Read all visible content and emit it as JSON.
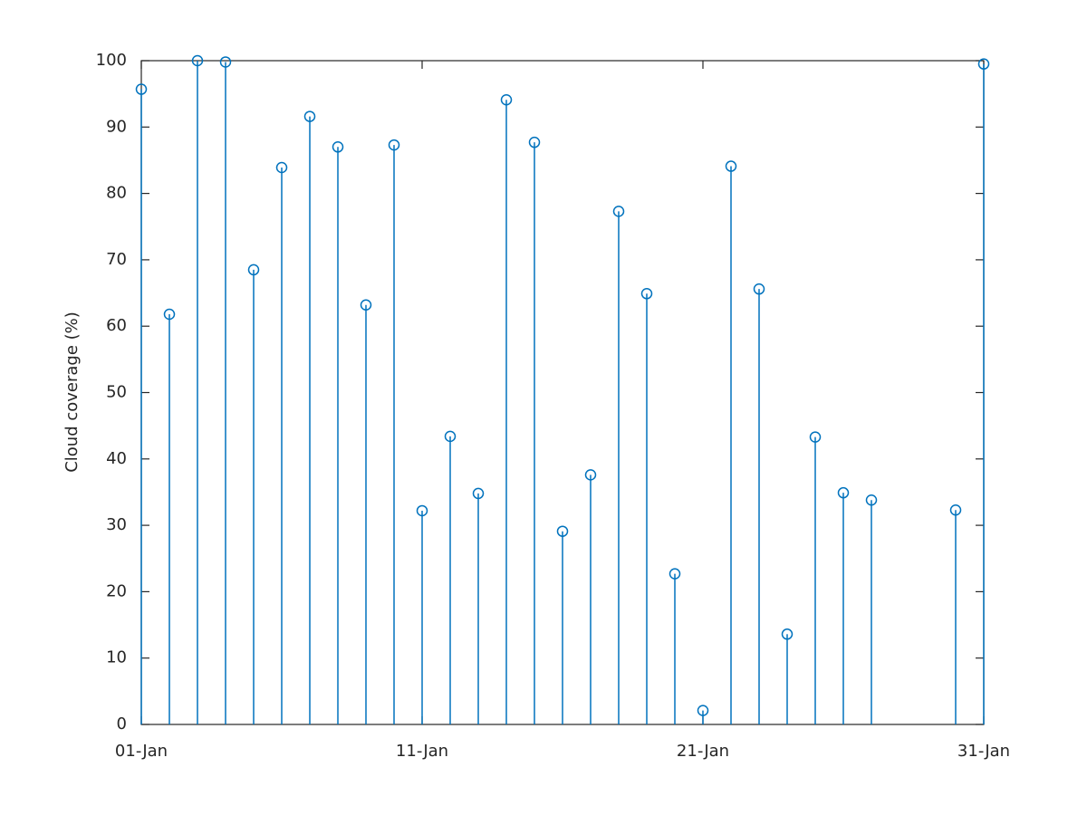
{
  "chart_data": {
    "type": "stem",
    "y_label": "Cloud coverage (%)",
    "x": [
      1,
      2,
      3,
      4,
      5,
      6,
      7,
      8,
      9,
      10,
      11,
      12,
      13,
      14,
      15,
      16,
      17,
      18,
      19,
      20,
      21,
      22,
      23,
      24,
      25,
      26,
      27,
      30,
      31
    ],
    "values": [
      95.7,
      61.8,
      100,
      99.8,
      68.5,
      83.9,
      91.6,
      87.0,
      63.2,
      87.3,
      32.2,
      43.4,
      34.8,
      94.1,
      87.7,
      29.1,
      37.6,
      77.3,
      64.9,
      22.7,
      2.1,
      84.1,
      65.6,
      13.6,
      43.3,
      34.9,
      33.8,
      32.3,
      99.5
    ],
    "color": "#0072bd",
    "xlim": [
      1,
      31
    ],
    "xticks": [
      {
        "value": 1,
        "label": "01-Jan"
      },
      {
        "value": 11,
        "label": "11-Jan"
      },
      {
        "value": 21,
        "label": "21-Jan"
      },
      {
        "value": 31,
        "label": "31-Jan"
      }
    ],
    "ylim": [
      0,
      100
    ],
    "yticks": [
      0,
      10,
      20,
      30,
      40,
      50,
      60,
      70,
      80,
      90,
      100
    ],
    "grid": false
  }
}
